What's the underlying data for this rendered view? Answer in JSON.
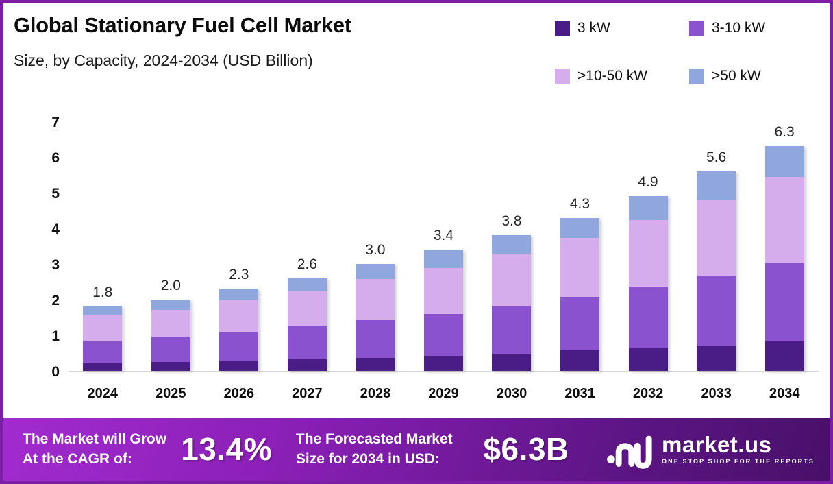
{
  "header": {
    "title": "Global Stationary Fuel Cell Market",
    "subtitle": "Size, by Capacity, 2024-2034 (USD Billion)"
  },
  "colors": {
    "frame_border": "#7C1FA6",
    "series_3kw": "#4A1C86",
    "series_3_10kw": "#8A52CE",
    "series_10_50kw": "#D5ADED",
    "series_50kw": "#8FA7DC",
    "footer_gradient_start": "#A22BCF",
    "footer_gradient_end": "#481069",
    "baseline": "#D7D7D7"
  },
  "chart_data": {
    "type": "bar",
    "variant": "stacked",
    "title": "Global Stationary Fuel Cell Market Size, by Capacity, 2024-2034 (USD Billion)",
    "xlabel": "",
    "ylabel": "",
    "unit": "USD Billion",
    "ylim": [
      0,
      7
    ],
    "yticks": [
      0,
      1,
      2,
      3,
      4,
      5,
      6,
      7
    ],
    "grid": false,
    "legend_position": "top-right",
    "categories": [
      "2024",
      "2025",
      "2026",
      "2027",
      "2028",
      "2029",
      "2030",
      "2031",
      "2032",
      "2033",
      "2034"
    ],
    "series": [
      {
        "name": "3 kW",
        "color": "#4A1C86",
        "values": [
          0.22,
          0.25,
          0.28,
          0.32,
          0.37,
          0.42,
          0.48,
          0.57,
          0.63,
          0.72,
          0.82
        ]
      },
      {
        "name": "3-10 kW",
        "color": "#8A52CE",
        "values": [
          0.63,
          0.7,
          0.82,
          0.93,
          1.05,
          1.18,
          1.35,
          1.51,
          1.73,
          1.96,
          2.2
        ]
      },
      {
        "name": ">10-50 kW",
        "color": "#D5ADED",
        "values": [
          0.7,
          0.77,
          0.9,
          1.0,
          1.15,
          1.29,
          1.45,
          1.66,
          1.87,
          2.11,
          2.43
        ]
      },
      {
        "name": ">50 kW",
        "color": "#8FA7DC",
        "values": [
          0.25,
          0.28,
          0.3,
          0.35,
          0.43,
          0.51,
          0.52,
          0.56,
          0.67,
          0.81,
          0.85
        ]
      }
    ],
    "totals_labels": [
      "1.8",
      "2.0",
      "2.3",
      "2.6",
      "3.0",
      "3.4",
      "3.8",
      "4.3",
      "4.9",
      "5.6",
      "6.3"
    ]
  },
  "footer": {
    "cagr_label_line1": "The Market will Grow",
    "cagr_label_line2": "At the CAGR of:",
    "cagr_value": "13.4%",
    "forecast_label_line1": "The Forecasted Market",
    "forecast_label_line2": "Size for 2034 in USD:",
    "forecast_value": "$6.3B",
    "logo_name": "market.us",
    "logo_tagline": "ONE STOP SHOP FOR THE REPORTS"
  }
}
